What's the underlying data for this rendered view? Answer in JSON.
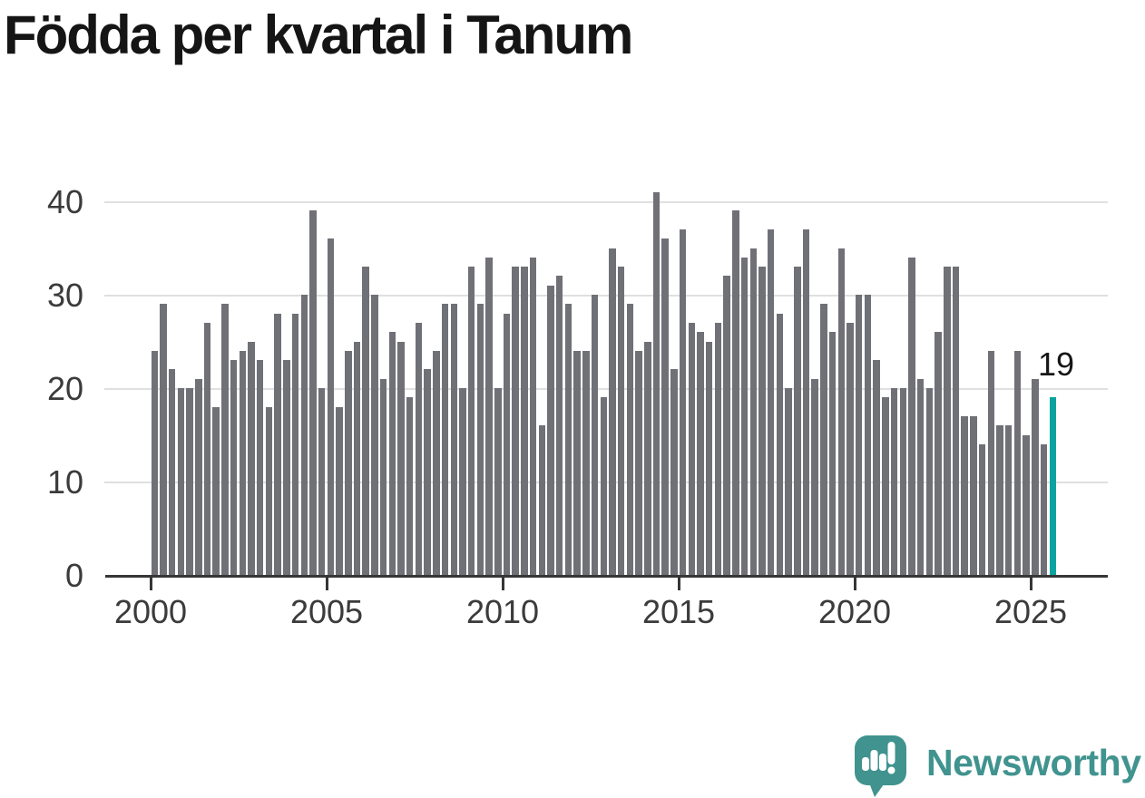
{
  "title": "Födda per kvartal i Tanum",
  "annotation": {
    "last_value_label": "19"
  },
  "logo": {
    "text": "Newsworthy"
  },
  "colors": {
    "bar": "#707077",
    "highlight": "#0aa39e",
    "axis_text": "#3b3b3b",
    "grid": "#e0e0e0",
    "baseline": "#363636",
    "title_text": "#151515",
    "annotation_text": "#161616",
    "logo": "#40938e",
    "background": "#ffffff"
  },
  "chart_data": {
    "type": "bar",
    "title": "Födda per kvartal i Tanum",
    "ylabel": "",
    "xlabel": "",
    "frequency": "quarterly",
    "x_start": "2000 Q1",
    "x_end": "2025 Q3",
    "x_tick_labels": [
      "2000",
      "2005",
      "2010",
      "2015",
      "2020",
      "2025"
    ],
    "y_ticks": [
      0,
      10,
      20,
      30,
      40
    ],
    "ylim": [
      0,
      44
    ],
    "grid": "horizontal",
    "legend": "none",
    "values": [
      24,
      29,
      22,
      20,
      20,
      21,
      27,
      18,
      29,
      23,
      24,
      25,
      23,
      18,
      28,
      23,
      28,
      30,
      39,
      20,
      36,
      18,
      24,
      25,
      33,
      30,
      21,
      26,
      25,
      19,
      27,
      22,
      24,
      29,
      29,
      20,
      33,
      29,
      34,
      20,
      28,
      33,
      33,
      34,
      16,
      31,
      32,
      29,
      24,
      24,
      30,
      19,
      35,
      33,
      29,
      24,
      25,
      41,
      36,
      22,
      37,
      27,
      26,
      25,
      27,
      32,
      39,
      34,
      35,
      33,
      37,
      28,
      20,
      33,
      37,
      21,
      29,
      26,
      35,
      27,
      30,
      30,
      23,
      19,
      20,
      20,
      34,
      21,
      20,
      26,
      33,
      33,
      17,
      17,
      14,
      24,
      16,
      16,
      24,
      15,
      21,
      14,
      19
    ],
    "highlight_last_bar": true,
    "highlighted_value": 19
  }
}
